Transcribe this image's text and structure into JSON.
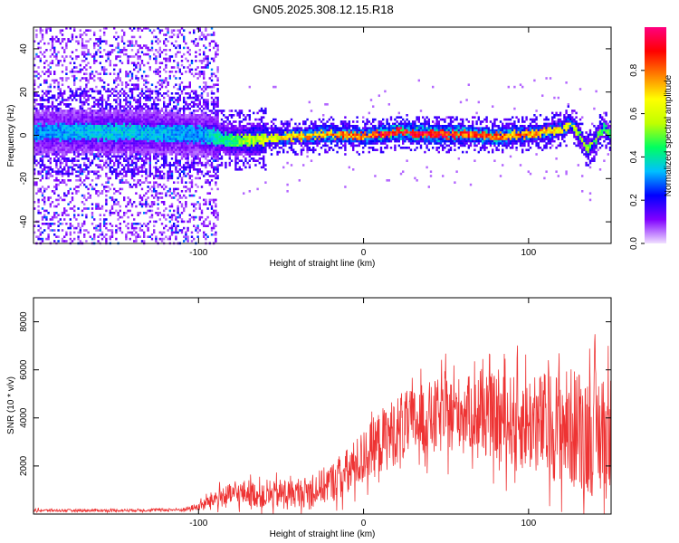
{
  "figure": {
    "title": "GN05.2025.308.12.15.R18"
  },
  "chart_data": [
    {
      "type": "heatmap",
      "xlabel": "Height of straight line (km)",
      "ylabel": "Frequency (Hz)",
      "xlim": [
        -200,
        150
      ],
      "ylim": [
        -50,
        50
      ],
      "xticks": [
        -100,
        0,
        100
      ],
      "yticks": [
        -40,
        -20,
        0,
        20,
        40
      ],
      "grid": false,
      "colorbar": {
        "label": "Normalized spectral amplitude",
        "range": [
          0,
          1
        ],
        "ticks": [
          0.0,
          0.2,
          0.4,
          0.6,
          0.8
        ],
        "tick_labels": [
          "0.0",
          "0.2",
          "0.4",
          "0.6",
          "0.8"
        ],
        "colormap": [
          "#f0e0ff",
          "#8000ff",
          "#0000ff",
          "#00c0ff",
          "#00ff60",
          "#c0ff00",
          "#ffff00",
          "#ff8000",
          "#ff0000",
          "#ff0080"
        ]
      },
      "ridge": {
        "x": [
          -200,
          -150,
          -100,
          -80,
          -60,
          -40,
          -20,
          0,
          20,
          40,
          60,
          80,
          100,
          110,
          120,
          125,
          130,
          135,
          140,
          145,
          150
        ],
        "frequency": [
          2,
          2,
          1,
          -2,
          -1,
          0,
          1,
          0,
          2,
          1,
          1,
          0,
          1,
          2,
          3,
          6,
          1,
          -6,
          -2,
          4,
          0
        ],
        "peak_amplitude": [
          0.3,
          0.35,
          0.3,
          0.45,
          0.6,
          0.7,
          0.75,
          0.8,
          0.9,
          0.9,
          0.85,
          0.8,
          0.75,
          0.7,
          0.65,
          0.6,
          0.55,
          0.5,
          0.5,
          0.45,
          0.45
        ]
      },
      "noise_region": {
        "x": [
          -200,
          -88
        ],
        "frequency": [
          -50,
          50
        ],
        "amplitude": [
          0.05,
          0.3
        ]
      }
    },
    {
      "type": "line",
      "xlabel": "Height of straight line (km)",
      "ylabel": "SNR (10 * v/v)",
      "xlim": [
        -200,
        150
      ],
      "ylim": [
        0,
        9000
      ],
      "xticks": [
        -100,
        0,
        100
      ],
      "yticks": [
        2000,
        4000,
        6000,
        8000
      ],
      "grid": false,
      "series": [
        {
          "color": "#ee3333",
          "x": [
            -200,
            -150,
            -110,
            -100,
            -90,
            -80,
            -70,
            -60,
            -50,
            -40,
            -30,
            -20,
            -10,
            0,
            10,
            20,
            30,
            40,
            50,
            60,
            70,
            80,
            90,
            100,
            110,
            120,
            130,
            140,
            150
          ],
          "mean": [
            150,
            150,
            180,
            300,
            650,
            800,
            900,
            700,
            850,
            850,
            1000,
            1300,
            1700,
            2400,
            3000,
            3500,
            3800,
            4000,
            4100,
            4300,
            4100,
            4000,
            3900,
            3800,
            3700,
            3700,
            3500,
            3400,
            3200
          ],
          "spread": [
            70,
            70,
            90,
            200,
            500,
            600,
            700,
            600,
            800,
            700,
            900,
            1000,
            1300,
            1400,
            1700,
            1800,
            1800,
            1900,
            2000,
            1800,
            2100,
            2200,
            2400,
            2600,
            2800,
            3000,
            3300,
            3400,
            3300
          ]
        }
      ]
    }
  ]
}
